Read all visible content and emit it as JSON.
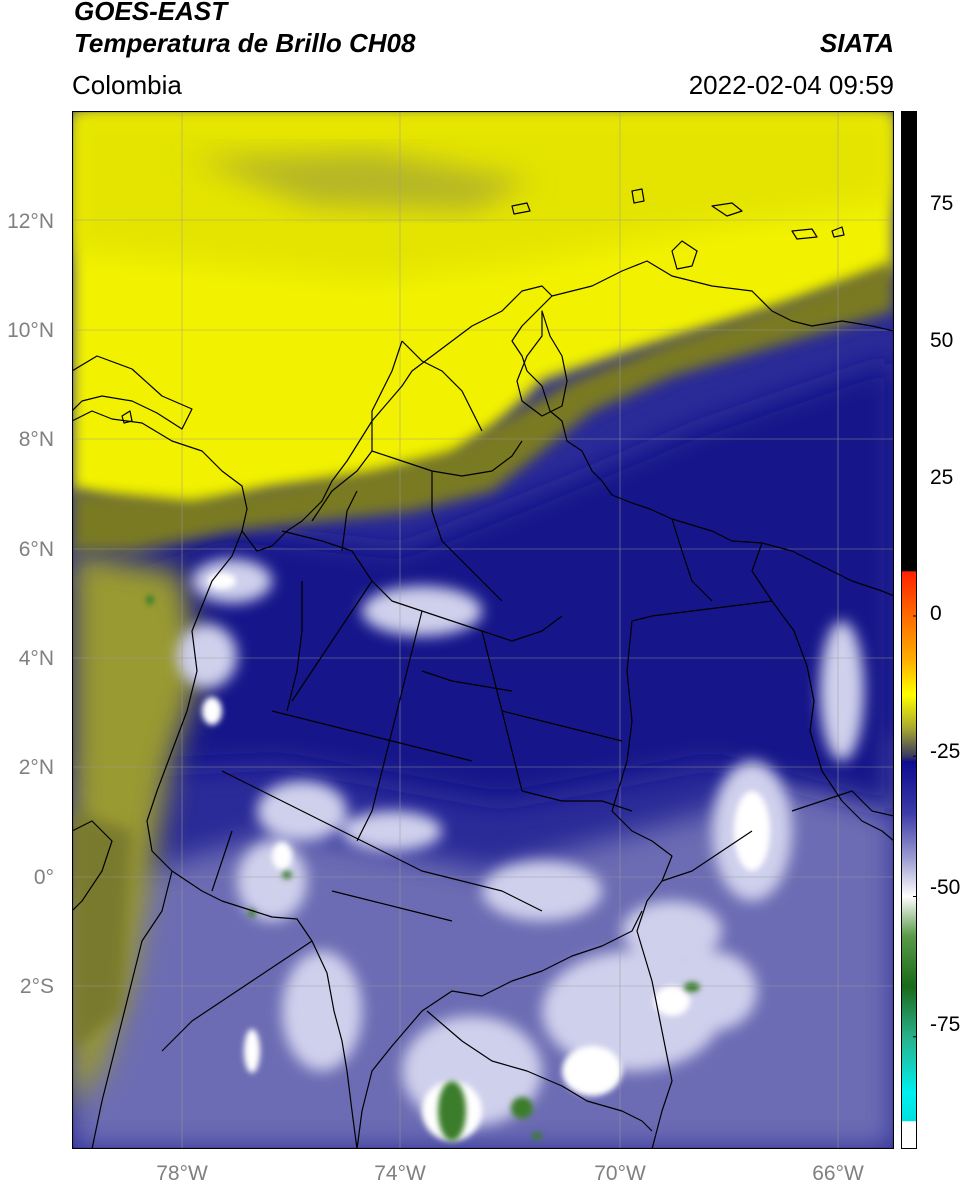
{
  "header": {
    "title_line1": "GOES-EAST",
    "title_line2": "Temperatura de Brillo CH08",
    "brand": "SIATA",
    "region": "Colombia",
    "timestamp": "2022-02-04 09:59"
  },
  "map": {
    "extent": {
      "lon_min": -80.0,
      "lon_max": -65.0,
      "lat_min": -4.5,
      "lat_max": 14.0
    },
    "lat_ticks": [
      {
        "value": 12,
        "label": "12°N"
      },
      {
        "value": 10,
        "label": "10°N"
      },
      {
        "value": 8,
        "label": "8°N"
      },
      {
        "value": 6,
        "label": "6°N"
      },
      {
        "value": 4,
        "label": "4°N"
      },
      {
        "value": 2,
        "label": "2°N"
      },
      {
        "value": 0,
        "label": "0°"
      },
      {
        "value": -2,
        "label": "2°S"
      }
    ],
    "lon_ticks": [
      {
        "value": -78,
        "label": "78°W"
      },
      {
        "value": -74,
        "label": "74°W"
      },
      {
        "value": -70,
        "label": "70°W"
      },
      {
        "value": -66,
        "label": "66°W"
      }
    ],
    "gridlines": true,
    "colors": {
      "yellow": "#f2f200",
      "olive": "#8a8a2e",
      "navy": "#12128a",
      "slate": "#6c6cb4",
      "light": "#d4d4ec",
      "green": "#3a7d2a",
      "border": "#000000",
      "grid": "#9a9a9a"
    }
  },
  "colorbar": {
    "vmin": -95,
    "vmax": 90,
    "ticks": [
      {
        "value": 75,
        "label": "75"
      },
      {
        "value": 50,
        "label": "50"
      },
      {
        "value": 25,
        "label": "25"
      },
      {
        "value": 0,
        "label": "0"
      },
      {
        "value": -25,
        "label": "-25"
      },
      {
        "value": -50,
        "label": "-50"
      },
      {
        "value": -75,
        "label": "-75"
      }
    ],
    "stops": [
      {
        "value": 90,
        "color": "#000000"
      },
      {
        "value": 8,
        "color": "#000000"
      },
      {
        "value": 7.9,
        "color": "#ff2200"
      },
      {
        "value": 0,
        "color": "#ff6a00"
      },
      {
        "value": -8,
        "color": "#ffb000"
      },
      {
        "value": -14,
        "color": "#ffff00"
      },
      {
        "value": -20,
        "color": "#a8a830"
      },
      {
        "value": -25,
        "color": "#3a3a60"
      },
      {
        "value": -26,
        "color": "#0c0c90"
      },
      {
        "value": -35,
        "color": "#3a3aa8"
      },
      {
        "value": -43,
        "color": "#9a9ad0"
      },
      {
        "value": -50,
        "color": "#ffffff"
      },
      {
        "value": -57,
        "color": "#5a9a4a"
      },
      {
        "value": -66,
        "color": "#1a6a1a"
      },
      {
        "value": -75,
        "color": "#2ab08a"
      },
      {
        "value": -85,
        "color": "#00f0f0"
      },
      {
        "value": -90,
        "color": "#00e0e0"
      },
      {
        "value": -90.1,
        "color": "#ffffff"
      },
      {
        "value": -95,
        "color": "#ffffff"
      }
    ]
  }
}
